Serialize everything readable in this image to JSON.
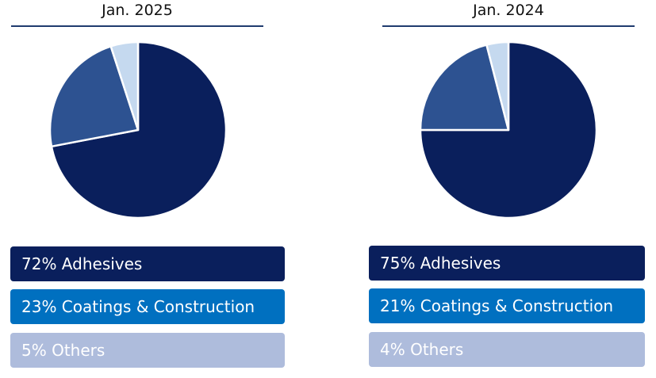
{
  "chart_data": [
    {
      "type": "pie",
      "title": "Jan. 2025",
      "slices": [
        {
          "label": "Adhesives",
          "value": 72,
          "color": "#0a1f5c",
          "text": "72% Adhesives"
        },
        {
          "label": "Coatings & Construction",
          "value": 23,
          "color": "#2d5291",
          "text": "23% Coatings & Construction"
        },
        {
          "label": "Others",
          "value": 5,
          "color": "#c5d9ef",
          "text": "5% Others"
        }
      ]
    },
    {
      "type": "pie",
      "title": "Jan. 2024",
      "slices": [
        {
          "label": "Adhesives",
          "value": 75,
          "color": "#0a1f5c",
          "text": "75% Adhesives"
        },
        {
          "label": "Coatings & Construction",
          "value": 21,
          "color": "#2d5291",
          "text": "21% Coatings & Construction"
        },
        {
          "label": "Others",
          "value": 4,
          "color": "#c5d9ef",
          "text": "4% Others"
        }
      ]
    }
  ],
  "legend_colors": [
    "#0a1f5c",
    "#0070c0",
    "#aebcdc"
  ],
  "legend_text_colors": [
    "#ffffff",
    "#ffffff",
    "#ffffff"
  ]
}
